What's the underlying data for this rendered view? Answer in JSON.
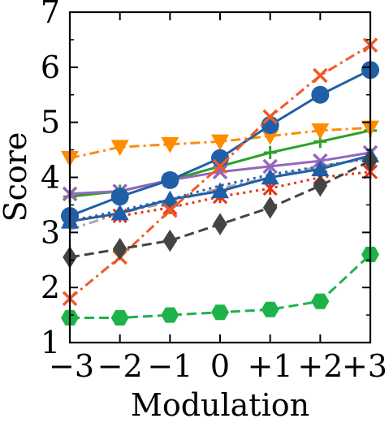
{
  "chart_data": {
    "type": "line",
    "xlabel": "Modulation",
    "ylabel": "Score",
    "categories": [
      "−3",
      "−2",
      "−1",
      "0",
      "+1",
      "+2",
      "+3"
    ],
    "x": [
      -3,
      -2,
      -1,
      0,
      1,
      2,
      3
    ],
    "xlim": [
      -3,
      3
    ],
    "ylim": [
      1,
      7
    ],
    "yticks": [
      1,
      2,
      3,
      4,
      5,
      6,
      7
    ],
    "grid": false,
    "legend": "none",
    "series": [
      {
        "color": "#2ca02c",
        "marker": "plus",
        "dash": "solid",
        "values": [
          3.65,
          3.75,
          3.95,
          4.2,
          4.45,
          4.65,
          4.85
        ]
      },
      {
        "color": "#9467bd",
        "marker": "x",
        "dash": "solid",
        "values": [
          3.7,
          3.75,
          3.95,
          4.1,
          4.2,
          4.3,
          4.45
        ]
      },
      {
        "color": "#aaaaaa",
        "marker": "none",
        "dash": "dashdot",
        "values": [
          3.05,
          3.35,
          3.55,
          3.8,
          4.0,
          4.2,
          4.35
        ]
      },
      {
        "color": "#3a5fa8",
        "marker": "none",
        "dash": "dotted",
        "values": [
          3.2,
          3.4,
          3.6,
          3.85,
          4.05,
          4.2,
          4.35
        ]
      },
      {
        "color": "#ff8c00",
        "marker": "triangle-down",
        "dash": "dashdot",
        "values": [
          4.35,
          4.55,
          4.6,
          4.65,
          4.75,
          4.85,
          4.9
        ]
      },
      {
        "color": "#e63312",
        "marker": "star",
        "dash": "dotted",
        "values": [
          3.25,
          3.3,
          3.45,
          3.65,
          3.8,
          4.0,
          4.1
        ]
      },
      {
        "color": "#1f5fa8",
        "marker": "triangle-up",
        "dash": "solid",
        "values": [
          3.2,
          3.35,
          3.6,
          3.75,
          4.0,
          4.15,
          4.4
        ]
      },
      {
        "color": "#1f5fa8",
        "marker": "circle",
        "dash": "solid",
        "values": [
          3.3,
          3.65,
          3.95,
          4.35,
          4.95,
          5.5,
          5.95
        ]
      },
      {
        "color": "#f05a28",
        "marker": "x",
        "dash": "dashdot",
        "values": [
          1.8,
          2.55,
          3.4,
          4.2,
          5.1,
          5.85,
          6.4
        ]
      },
      {
        "color": "#444444",
        "marker": "diamond",
        "dash": "dashed",
        "values": [
          2.55,
          2.7,
          2.85,
          3.15,
          3.45,
          3.85,
          4.3
        ]
      },
      {
        "color": "#1db34a",
        "marker": "hexagon",
        "dash": "dashed",
        "values": [
          1.45,
          1.45,
          1.5,
          1.55,
          1.6,
          1.75,
          2.6
        ]
      }
    ]
  }
}
